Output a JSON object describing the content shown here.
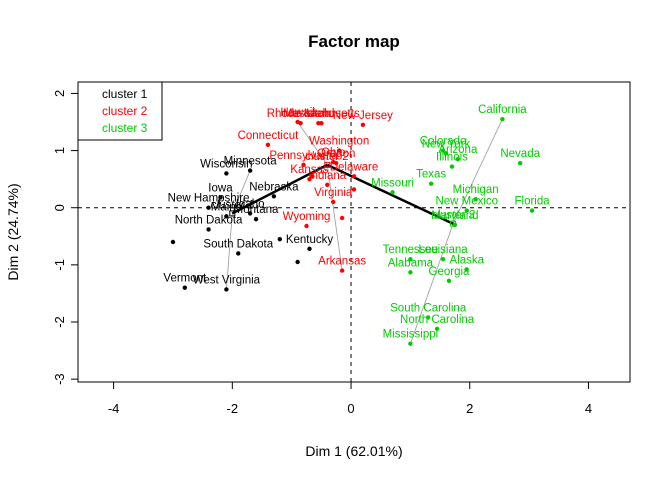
{
  "chart_data": {
    "type": "scatter",
    "title": "Factor map",
    "xlabel": "Dim 1 (62.01%)",
    "ylabel": "Dim 2 (24.74%)",
    "xlim": [
      -4.6,
      4.7
    ],
    "ylim": [
      -3.05,
      2.2
    ],
    "xticks": [
      -4,
      -2,
      0,
      2,
      4
    ],
    "yticks": [
      -3,
      -2,
      -1,
      0,
      1,
      2
    ],
    "grid": false,
    "legend_position": "top-left",
    "colors": {
      "cluster 1": "#000000",
      "cluster 2": "#ff0000",
      "cluster 3": "#00cd00"
    },
    "legend": [
      "cluster 1",
      "cluster 2",
      "cluster 3"
    ],
    "series": [
      {
        "name": "cluster 1",
        "center": {
          "label": "cluster 1",
          "x": -2.0,
          "y": -0.1
        },
        "points": [
          {
            "label": "Minnesota",
            "x": -1.7,
            "y": 0.65
          },
          {
            "label": "Wisconsin",
            "x": -2.1,
            "y": 0.6
          },
          {
            "label": "Iowa",
            "x": -2.2,
            "y": 0.18
          },
          {
            "label": "Nebraska",
            "x": -1.3,
            "y": 0.2
          },
          {
            "label": "New Hampshire",
            "x": -2.4,
            "y": 0.0
          },
          {
            "label": "Idaho",
            "x": -1.7,
            "y": -0.1
          },
          {
            "label": "Maine",
            "x": -2.1,
            "y": -0.15
          },
          {
            "label": "Montana",
            "x": -1.6,
            "y": -0.2
          },
          {
            "label": "North Dakota",
            "x": -2.4,
            "y": -0.38
          },
          {
            "label": "South Dakota",
            "x": -1.9,
            "y": -0.8
          },
          {
            "label": "Kentucky",
            "x": -0.7,
            "y": -0.72
          },
          {
            "label": "Vermont",
            "x": -2.8,
            "y": -1.4
          },
          {
            "label": "West Virginia",
            "x": -2.1,
            "y": -1.43
          },
          {
            "label": "",
            "x": -3.0,
            "y": -0.6
          },
          {
            "label": "",
            "x": -1.2,
            "y": -0.55
          },
          {
            "label": "",
            "x": -0.9,
            "y": -0.95
          }
        ]
      },
      {
        "name": "cluster 2",
        "center": {
          "label": "cluster 2",
          "x": -0.4,
          "y": 0.75
        },
        "points": [
          {
            "label": "Hawaii",
            "x": -0.9,
            "y": 1.5
          },
          {
            "label": "Rhode Island",
            "x": -0.85,
            "y": 1.48
          },
          {
            "label": "Massachusetts",
            "x": -0.5,
            "y": 1.48
          },
          {
            "label": "Utah",
            "x": -0.55,
            "y": 1.48
          },
          {
            "label": "New Jersey",
            "x": 0.2,
            "y": 1.45
          },
          {
            "label": "Connecticut",
            "x": -1.4,
            "y": 1.1
          },
          {
            "label": "Washington",
            "x": -0.2,
            "y": 1.0
          },
          {
            "label": "Ohio",
            "x": -0.3,
            "y": 0.8
          },
          {
            "label": "Pennsylvania",
            "x": -0.8,
            "y": 0.75
          },
          {
            "label": "Oregon",
            "x": -0.25,
            "y": 0.78
          },
          {
            "label": "Delaware",
            "x": 0.05,
            "y": 0.55
          },
          {
            "label": "Kansas",
            "x": -0.7,
            "y": 0.5
          },
          {
            "label": "Indiana",
            "x": -0.4,
            "y": 0.4
          },
          {
            "label": "Virginia",
            "x": -0.3,
            "y": 0.1
          },
          {
            "label": "Wyoming",
            "x": -0.75,
            "y": -0.32
          },
          {
            "label": "Arkansas",
            "x": -0.15,
            "y": -1.1
          },
          {
            "label": "",
            "x": 0.05,
            "y": 0.32
          },
          {
            "label": "",
            "x": -0.15,
            "y": -0.18
          },
          {
            "label": "",
            "x": -0.65,
            "y": 0.55
          }
        ]
      },
      {
        "name": "cluster 3",
        "center": {
          "label": "cluster 3",
          "x": 1.72,
          "y": -0.28
        },
        "points": [
          {
            "label": "California",
            "x": 2.55,
            "y": 1.55
          },
          {
            "label": "Colorado",
            "x": 1.55,
            "y": 1.0
          },
          {
            "label": "New York",
            "x": 1.6,
            "y": 0.95
          },
          {
            "label": "Arizona",
            "x": 1.8,
            "y": 0.85
          },
          {
            "label": "Illinois",
            "x": 1.7,
            "y": 0.72
          },
          {
            "label": "Nevada",
            "x": 2.85,
            "y": 0.78
          },
          {
            "label": "Texas",
            "x": 1.35,
            "y": 0.42
          },
          {
            "label": "Missouri",
            "x": 0.7,
            "y": 0.27
          },
          {
            "label": "Michigan",
            "x": 2.1,
            "y": 0.15
          },
          {
            "label": "Florida",
            "x": 3.05,
            "y": -0.05
          },
          {
            "label": "New Mexico",
            "x": 1.95,
            "y": -0.05
          },
          {
            "label": "Maryland",
            "x": 1.75,
            "y": -0.3
          },
          {
            "label": "Tennessee",
            "x": 1.0,
            "y": -0.9
          },
          {
            "label": "Louisiana",
            "x": 1.55,
            "y": -0.9
          },
          {
            "label": "Alabama",
            "x": 1.0,
            "y": -1.13
          },
          {
            "label": "Alaska",
            "x": 1.95,
            "y": -1.08
          },
          {
            "label": "Georgia",
            "x": 1.65,
            "y": -1.28
          },
          {
            "label": "South Carolina",
            "x": 1.3,
            "y": -1.92
          },
          {
            "label": "North Carolina",
            "x": 1.45,
            "y": -2.12
          },
          {
            "label": "Mississippi",
            "x": 1.0,
            "y": -2.38
          }
        ]
      }
    ],
    "tree_links": [
      [
        "cluster 1",
        "cluster 2"
      ],
      [
        "cluster 2",
        "cluster 3"
      ]
    ]
  }
}
